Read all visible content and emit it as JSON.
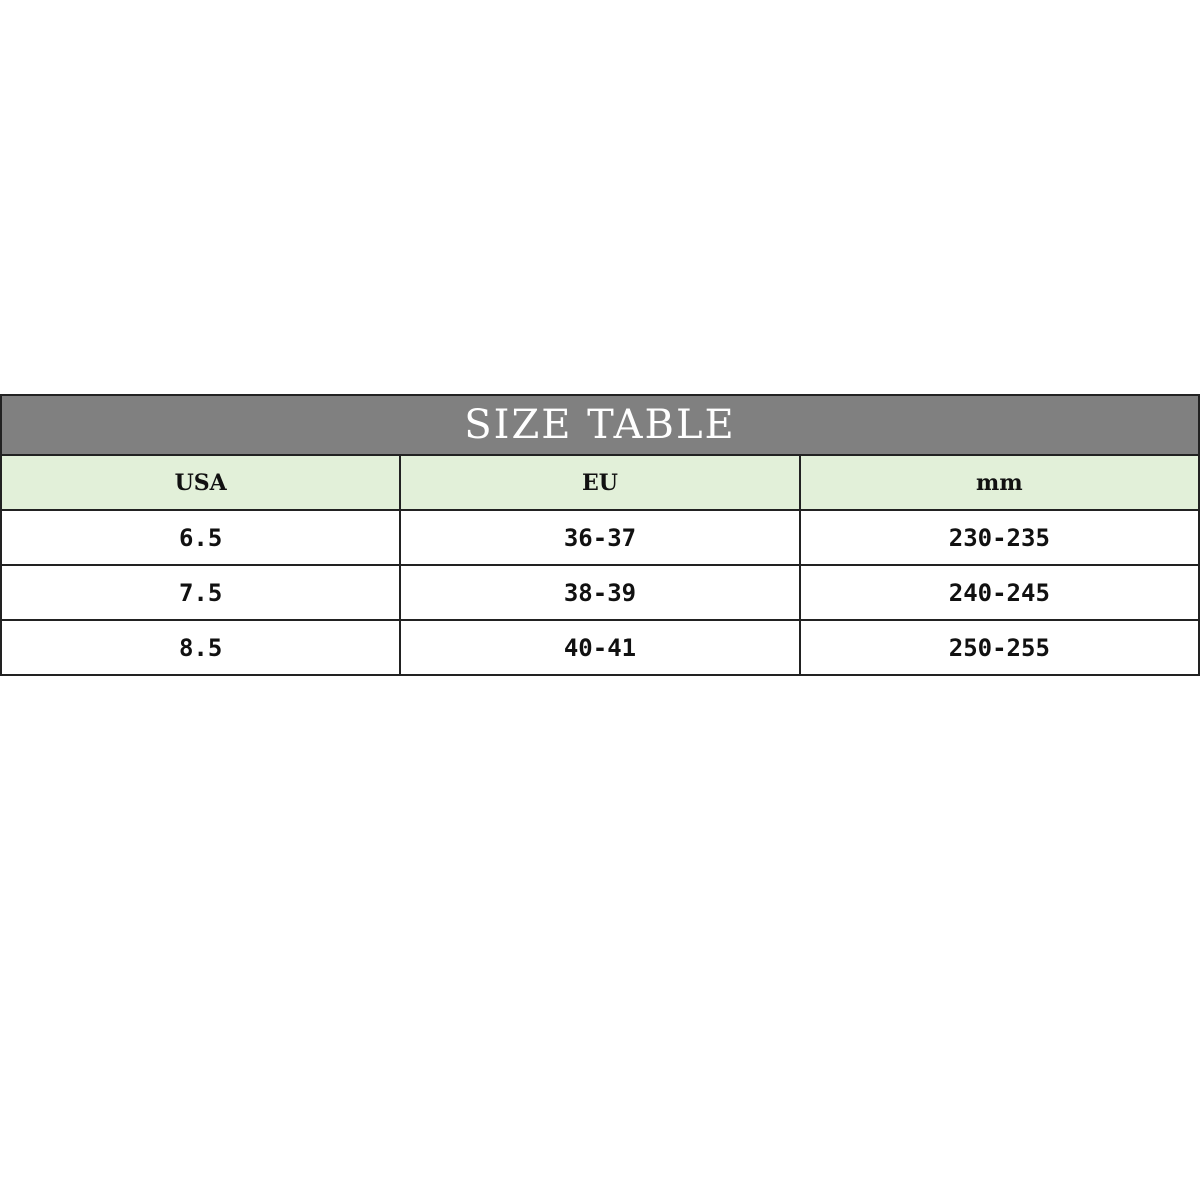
{
  "title": "SIZE TABLE",
  "columns": [
    "USA",
    "EU",
    "mm"
  ],
  "rows": [
    [
      "6.5",
      "36-37",
      "230-235"
    ],
    [
      "7.5",
      "38-39",
      "240-245"
    ],
    [
      "8.5",
      "40-41",
      "250-255"
    ]
  ],
  "colors": {
    "title_bg": "#808080",
    "header_bg": "#e2f0d9",
    "border": "#222222"
  }
}
